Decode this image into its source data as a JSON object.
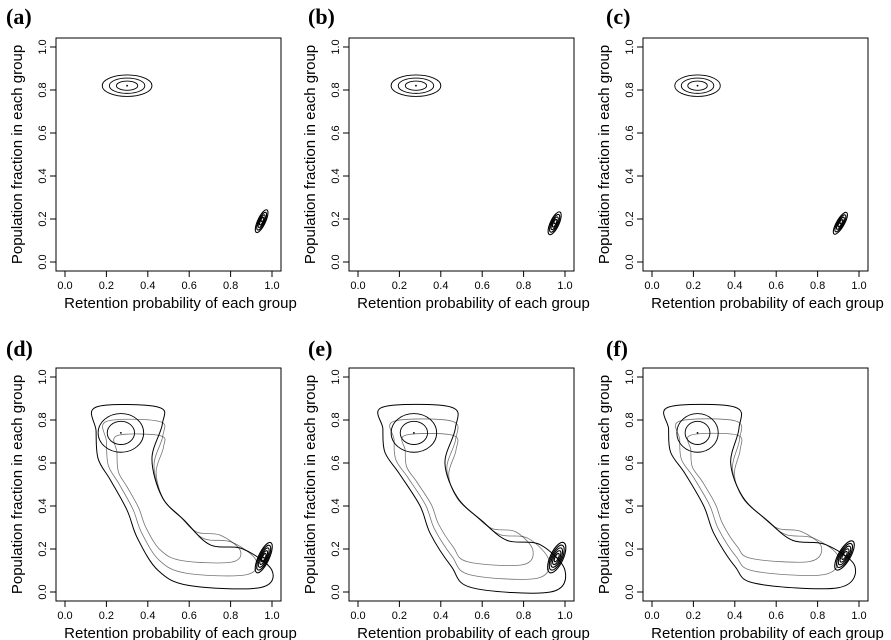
{
  "chart_data": [
    {
      "type": "contour",
      "panel_label": "(a)",
      "xlabel": "Retention probability of each group",
      "ylabel": "Population fraction in each group",
      "xlim": [
        0,
        1
      ],
      "ylim": [
        0,
        1
      ],
      "xticks": [
        "0.0",
        "0.2",
        "0.4",
        "0.6",
        "0.8",
        "1.0"
      ],
      "yticks": [
        "0.0",
        "0.2",
        "0.4",
        "0.6",
        "0.8",
        "1.0"
      ],
      "grid": false,
      "modes": [
        {
          "x": 0.3,
          "y": 0.82,
          "rx": 0.12,
          "ry": 0.05,
          "tilt": 0,
          "levels": 3
        },
        {
          "x": 0.95,
          "y": 0.19,
          "rx": 0.06,
          "ry": 0.018,
          "tilt": -65,
          "levels": 4
        }
      ]
    },
    {
      "type": "contour",
      "panel_label": "(b)",
      "xlabel": "Retention probability of each group",
      "ylabel": "Population fraction in each group",
      "xlim": [
        0,
        1
      ],
      "ylim": [
        0,
        1
      ],
      "xticks": [
        "0.0",
        "0.2",
        "0.4",
        "0.6",
        "0.8",
        "1.0"
      ],
      "yticks": [
        "0.0",
        "0.2",
        "0.4",
        "0.6",
        "0.8",
        "1.0"
      ],
      "grid": false,
      "modes": [
        {
          "x": 0.28,
          "y": 0.82,
          "rx": 0.12,
          "ry": 0.05,
          "tilt": 0,
          "levels": 3
        },
        {
          "x": 0.95,
          "y": 0.18,
          "rx": 0.06,
          "ry": 0.02,
          "tilt": -65,
          "levels": 4
        }
      ]
    },
    {
      "type": "contour",
      "panel_label": "(c)",
      "xlabel": "Retention probability of each group",
      "ylabel": "Population fraction in each group",
      "xlim": [
        0,
        1
      ],
      "ylim": [
        0,
        1
      ],
      "xticks": [
        "0.0",
        "0.2",
        "0.4",
        "0.6",
        "0.8",
        "1.0"
      ],
      "yticks": [
        "0.0",
        "0.2",
        "0.4",
        "0.6",
        "0.8",
        "1.0"
      ],
      "grid": false,
      "modes": [
        {
          "x": 0.22,
          "y": 0.82,
          "rx": 0.11,
          "ry": 0.05,
          "tilt": 0,
          "levels": 3
        },
        {
          "x": 0.91,
          "y": 0.18,
          "rx": 0.06,
          "ry": 0.018,
          "tilt": -60,
          "levels": 4
        }
      ]
    },
    {
      "type": "contour",
      "panel_label": "(d)",
      "xlabel": "Retention probability of each group",
      "ylabel": "Population fraction in each group",
      "xlim": [
        0,
        1
      ],
      "ylim": [
        0,
        1
      ],
      "xticks": [
        "0.0",
        "0.2",
        "0.4",
        "0.6",
        "0.8",
        "1.0"
      ],
      "yticks": [
        "0.0",
        "0.2",
        "0.4",
        "0.6",
        "0.8",
        "1.0"
      ],
      "grid": false,
      "modes": [
        {
          "x": 0.27,
          "y": 0.74,
          "rx": 0.11,
          "ry": 0.09,
          "tilt": 0,
          "levels": 2
        },
        {
          "x": 0.96,
          "y": 0.16,
          "rx": 0.08,
          "ry": 0.025,
          "tilt": -65,
          "levels": 5
        }
      ],
      "ridge": [
        {
          "x": 0.15,
          "y": 0.86
        },
        {
          "x": 0.45,
          "y": 0.86
        },
        {
          "x": 0.47,
          "y": 0.78
        },
        {
          "x": 0.42,
          "y": 0.62
        },
        {
          "x": 0.47,
          "y": 0.44
        },
        {
          "x": 0.58,
          "y": 0.33
        },
        {
          "x": 0.7,
          "y": 0.22
        },
        {
          "x": 0.86,
          "y": 0.2
        },
        {
          "x": 1.0,
          "y": 0.1
        },
        {
          "x": 0.94,
          "y": 0.02
        },
        {
          "x": 0.6,
          "y": 0.03
        },
        {
          "x": 0.45,
          "y": 0.1
        },
        {
          "x": 0.35,
          "y": 0.25
        },
        {
          "x": 0.3,
          "y": 0.38
        },
        {
          "x": 0.22,
          "y": 0.52
        },
        {
          "x": 0.16,
          "y": 0.62
        },
        {
          "x": 0.15,
          "y": 0.75
        }
      ]
    },
    {
      "type": "contour",
      "panel_label": "(e)",
      "xlabel": "Retention probability of each group",
      "ylabel": "Population fraction in each group",
      "xlim": [
        0,
        1
      ],
      "ylim": [
        0,
        1
      ],
      "xticks": [
        "0.0",
        "0.2",
        "0.4",
        "0.6",
        "0.8",
        "1.0"
      ],
      "yticks": [
        "0.0",
        "0.2",
        "0.4",
        "0.6",
        "0.8",
        "1.0"
      ],
      "grid": false,
      "modes": [
        {
          "x": 0.27,
          "y": 0.74,
          "rx": 0.11,
          "ry": 0.09,
          "tilt": 0,
          "levels": 2
        },
        {
          "x": 0.96,
          "y": 0.16,
          "rx": 0.08,
          "ry": 0.03,
          "tilt": -65,
          "levels": 5
        }
      ],
      "ridge": [
        {
          "x": 0.12,
          "y": 0.86
        },
        {
          "x": 0.45,
          "y": 0.86
        },
        {
          "x": 0.47,
          "y": 0.76
        },
        {
          "x": 0.42,
          "y": 0.6
        },
        {
          "x": 0.48,
          "y": 0.44
        },
        {
          "x": 0.6,
          "y": 0.33
        },
        {
          "x": 0.72,
          "y": 0.24
        },
        {
          "x": 0.88,
          "y": 0.22
        },
        {
          "x": 1.0,
          "y": 0.1
        },
        {
          "x": 0.93,
          "y": 0.0
        },
        {
          "x": 0.55,
          "y": 0.02
        },
        {
          "x": 0.45,
          "y": 0.12
        },
        {
          "x": 0.35,
          "y": 0.27
        },
        {
          "x": 0.3,
          "y": 0.4
        },
        {
          "x": 0.2,
          "y": 0.55
        },
        {
          "x": 0.13,
          "y": 0.65
        },
        {
          "x": 0.12,
          "y": 0.76
        }
      ]
    },
    {
      "type": "contour",
      "panel_label": "(f)",
      "xlabel": "Retention probability of each group",
      "ylabel": "Population fraction in each group",
      "xlim": [
        0,
        1
      ],
      "ylim": [
        0,
        1
      ],
      "xticks": [
        "0.0",
        "0.2",
        "0.4",
        "0.6",
        "0.8",
        "1.0"
      ],
      "yticks": [
        "0.0",
        "0.2",
        "0.4",
        "0.6",
        "0.8",
        "1.0"
      ],
      "grid": false,
      "modes": [
        {
          "x": 0.22,
          "y": 0.74,
          "rx": 0.1,
          "ry": 0.09,
          "tilt": 0,
          "levels": 2
        },
        {
          "x": 0.93,
          "y": 0.17,
          "rx": 0.08,
          "ry": 0.028,
          "tilt": -60,
          "levels": 5
        }
      ],
      "ridge": [
        {
          "x": 0.08,
          "y": 0.86
        },
        {
          "x": 0.4,
          "y": 0.86
        },
        {
          "x": 0.42,
          "y": 0.76
        },
        {
          "x": 0.38,
          "y": 0.6
        },
        {
          "x": 0.44,
          "y": 0.44
        },
        {
          "x": 0.56,
          "y": 0.33
        },
        {
          "x": 0.68,
          "y": 0.24
        },
        {
          "x": 0.84,
          "y": 0.22
        },
        {
          "x": 0.98,
          "y": 0.12
        },
        {
          "x": 0.9,
          "y": 0.02
        },
        {
          "x": 0.5,
          "y": 0.04
        },
        {
          "x": 0.4,
          "y": 0.12
        },
        {
          "x": 0.3,
          "y": 0.27
        },
        {
          "x": 0.25,
          "y": 0.4
        },
        {
          "x": 0.16,
          "y": 0.55
        },
        {
          "x": 0.09,
          "y": 0.65
        },
        {
          "x": 0.08,
          "y": 0.76
        }
      ]
    }
  ]
}
